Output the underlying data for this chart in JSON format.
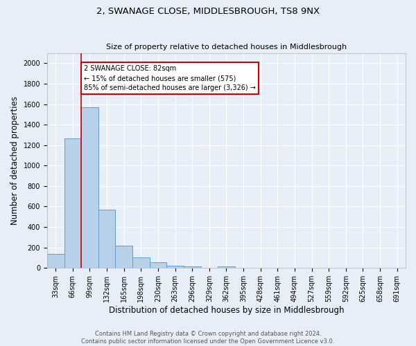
{
  "title1": "2, SWANAGE CLOSE, MIDDLESBROUGH, TS8 9NX",
  "title2": "Size of property relative to detached houses in Middlesbrough",
  "xlabel": "Distribution of detached houses by size in Middlesbrough",
  "ylabel": "Number of detached properties",
  "footer1": "Contains HM Land Registry data © Crown copyright and database right 2024.",
  "footer2": "Contains public sector information licensed under the Open Government Licence v3.0.",
  "categories": [
    "33sqm",
    "66sqm",
    "99sqm",
    "132sqm",
    "165sqm",
    "198sqm",
    "230sqm",
    "263sqm",
    "296sqm",
    "329sqm",
    "362sqm",
    "395sqm",
    "428sqm",
    "461sqm",
    "494sqm",
    "527sqm",
    "559sqm",
    "592sqm",
    "625sqm",
    "658sqm",
    "691sqm"
  ],
  "values": [
    140,
    1265,
    1570,
    570,
    220,
    100,
    55,
    25,
    15,
    0,
    15,
    0,
    0,
    0,
    0,
    0,
    0,
    0,
    0,
    0,
    0
  ],
  "bar_color": "#b8d0e8",
  "bar_edge_color": "#5a9fd4",
  "background_color": "#e8eef8",
  "grid_color": "#ffffff",
  "red_line_x": 1.5,
  "annotation_text": "2 SWANAGE CLOSE: 82sqm\n← 15% of detached houses are smaller (575)\n85% of semi-detached houses are larger (3,326) →",
  "annotation_box_color": "#ffffff",
  "annotation_box_edge": "#cc0000",
  "ylim": [
    0,
    2100
  ],
  "yticks": [
    0,
    200,
    400,
    600,
    800,
    1000,
    1200,
    1400,
    1600,
    1800,
    2000
  ],
  "title1_fontsize": 9.5,
  "title2_fontsize": 8,
  "xlabel_fontsize": 8.5,
  "ylabel_fontsize": 8.5,
  "tick_fontsize": 7,
  "footer_fontsize": 6,
  "annot_fontsize": 7
}
